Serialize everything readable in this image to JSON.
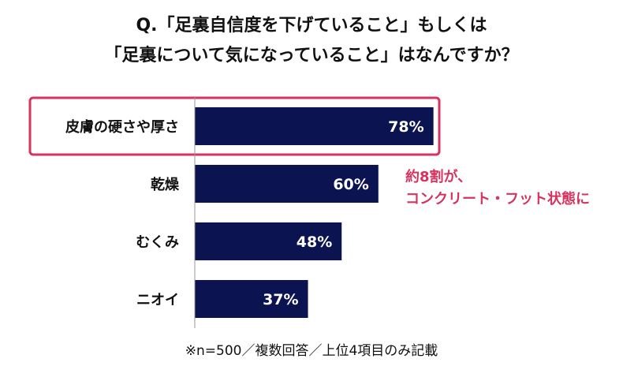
{
  "title_line1": "Q.「足裏自信度を下げていること」もしくは",
  "title_line2": "「足裏について気になっていること」はなんですか？",
  "annotation_line1": "約8割が、",
  "annotation_line2": "コンクリート・フット状態に",
  "footnote": "※n=500／複数回答／上位4項目のみ記載",
  "colors": {
    "bar": "#0b1450",
    "highlight": "#d6335e",
    "axis": "#999999"
  },
  "chart_data": {
    "type": "bar",
    "orientation": "horizontal",
    "categories": [
      "皮膚の硬さや厚さ",
      "乾燥",
      "むくみ",
      "ニオイ"
    ],
    "values": [
      78,
      60,
      48,
      37
    ],
    "value_labels": [
      "78%",
      "60%",
      "48%",
      "37%"
    ],
    "unit": "%",
    "highlighted_category": "皮膚の硬さや厚さ",
    "xlim": [
      0,
      100
    ],
    "grid": false,
    "legend": "none"
  }
}
